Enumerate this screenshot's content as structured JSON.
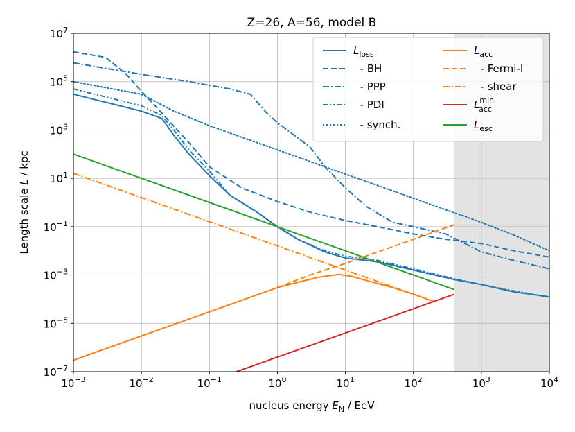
{
  "chart_data": {
    "type": "line",
    "title": "Z=26, A=56, model B",
    "xlabel": {
      "main": "nucleus energy ",
      "var": "E",
      "sub": "N",
      "unit": " / EeV"
    },
    "ylabel": {
      "main": "Length scale ",
      "var": "L",
      "unit": " / kpc"
    },
    "xscale": "log",
    "yscale": "log",
    "xlim_exp": [
      -3,
      4
    ],
    "ylim_exp": [
      -7,
      7
    ],
    "x_ticks": [
      {
        "exp": -3,
        "base": "10",
        "sup": "−3"
      },
      {
        "exp": -2,
        "base": "10",
        "sup": "−2"
      },
      {
        "exp": -1,
        "base": "10",
        "sup": "−1"
      },
      {
        "exp": 0,
        "base": "10",
        "sup": "0"
      },
      {
        "exp": 1,
        "base": "10",
        "sup": "1"
      },
      {
        "exp": 2,
        "base": "10",
        "sup": "2"
      },
      {
        "exp": 3,
        "base": "10",
        "sup": "3"
      },
      {
        "exp": 4,
        "base": "10",
        "sup": "4"
      }
    ],
    "y_ticks": [
      {
        "exp": -7,
        "base": "10",
        "sup": "−7"
      },
      {
        "exp": -5,
        "base": "10",
        "sup": "−5"
      },
      {
        "exp": -3,
        "base": "10",
        "sup": "−3"
      },
      {
        "exp": -1,
        "base": "10",
        "sup": "−1"
      },
      {
        "exp": 1,
        "base": "10",
        "sup": "1"
      },
      {
        "exp": 3,
        "base": "10",
        "sup": "3"
      },
      {
        "exp": 5,
        "base": "10",
        "sup": "5"
      },
      {
        "exp": 7,
        "base": "10",
        "sup": "7"
      }
    ],
    "grid": true,
    "shaded_region": {
      "x_from": 400,
      "x_to": 10000,
      "color": "#e3e3e3"
    },
    "legend_position": "top-right",
    "series": [
      {
        "name": "L_loss",
        "label": {
          "var": "L",
          "sub": "loss"
        },
        "color": "#1f77b4",
        "style": "solid",
        "points": [
          [
            0.001,
            30000.0
          ],
          [
            0.003,
            14000.0
          ],
          [
            0.01,
            6000.0
          ],
          [
            0.02,
            3000.0
          ],
          [
            0.03,
            600.0
          ],
          [
            0.05,
            100.0
          ],
          [
            0.1,
            13.0
          ],
          [
            0.2,
            2
          ],
          [
            0.5,
            0.4
          ],
          [
            1,
            0.1
          ],
          [
            2,
            0.03
          ],
          [
            5,
            0.009
          ],
          [
            10,
            0.005
          ],
          [
            30,
            0.0035
          ],
          [
            100,
            0.0016
          ],
          [
            400,
            0.00065
          ],
          [
            1000,
            0.0004
          ],
          [
            3000,
            0.0002
          ],
          [
            10000,
            0.000125
          ]
        ]
      },
      {
        "name": "- BH",
        "label": {
          "text": "  - BH"
        },
        "color": "#1f77b4",
        "style": "dashed",
        "points": [
          [
            0.001,
            1700000.0
          ],
          [
            0.003,
            1000000.0
          ],
          [
            0.006,
            200000.0
          ],
          [
            0.01,
            40000.0
          ],
          [
            0.02,
            5000.0
          ],
          [
            0.05,
            300.0
          ],
          [
            0.1,
            30.0
          ],
          [
            0.3,
            4
          ],
          [
            1,
            1.1
          ],
          [
            3,
            0.4
          ],
          [
            10,
            0.18
          ],
          [
            30,
            0.1
          ],
          [
            100,
            0.05
          ],
          [
            300,
            0.03
          ],
          [
            1000,
            0.02
          ],
          [
            3000,
            0.01
          ],
          [
            10000,
            0.0055
          ]
        ]
      },
      {
        "name": "- PPP",
        "label": {
          "text": "  - PPP"
        },
        "color": "#1f77b4",
        "style": "dashdot",
        "points": [
          [
            0.001,
            600000.0
          ],
          [
            0.01,
            200000.0
          ],
          [
            0.05,
            100000.0
          ],
          [
            0.2,
            50000.0
          ],
          [
            0.4,
            30000.0
          ],
          [
            0.7,
            5000.0
          ],
          [
            1,
            2000.0
          ],
          [
            3,
            200.0
          ],
          [
            5,
            30.0
          ],
          [
            10,
            4
          ],
          [
            20,
            0.7
          ],
          [
            50,
            0.15
          ],
          [
            100,
            0.1
          ],
          [
            300,
            0.05
          ],
          [
            1000,
            0.009
          ],
          [
            3000,
            0.004
          ],
          [
            10000,
            0.0018
          ]
        ]
      },
      {
        "name": "- PDI",
        "label": {
          "text": "  - PDI"
        },
        "color": "#1f77b4",
        "style": "dashdotdot",
        "points": [
          [
            0.001,
            50000.0
          ],
          [
            0.01,
            10000.0
          ],
          [
            0.02,
            4000.0
          ],
          [
            0.03,
            1000.0
          ],
          [
            0.05,
            150.0
          ],
          [
            0.1,
            20.0
          ],
          [
            0.2,
            2
          ],
          [
            0.5,
            0.4
          ],
          [
            1,
            0.1
          ],
          [
            2,
            0.03
          ],
          [
            5,
            0.01
          ],
          [
            10,
            0.006
          ],
          [
            30,
            0.004
          ],
          [
            100,
            0.0018
          ],
          [
            400,
            0.0007
          ],
          [
            1000,
            0.0004
          ],
          [
            3000,
            0.00022
          ],
          [
            10000,
            0.00012
          ]
        ]
      },
      {
        "name": "- synch.",
        "label": {
          "text": "  - synch."
        },
        "color": "#1f77b4",
        "style": "dotted",
        "points": [
          [
            0.001,
            100000.0
          ],
          [
            0.01,
            30000.0
          ],
          [
            0.03,
            6000.0
          ],
          [
            0.1,
            1500.0
          ],
          [
            0.3,
            500.0
          ],
          [
            1,
            150.0
          ],
          [
            3,
            50.0
          ],
          [
            10,
            15.0
          ],
          [
            30,
            5
          ],
          [
            100,
            1.5
          ],
          [
            300,
            0.5
          ],
          [
            1000,
            0.15
          ],
          [
            3000,
            0.045
          ],
          [
            10000,
            0.01
          ]
        ]
      },
      {
        "name": "L_acc",
        "label": {
          "var": "L",
          "sub": "acc"
        },
        "color": "#ff7f0e",
        "style": "solid",
        "points": [
          [
            0.001,
            3e-07
          ],
          [
            0.01,
            3e-06
          ],
          [
            0.1,
            3e-05
          ],
          [
            1,
            0.0003
          ],
          [
            2,
            0.0005
          ],
          [
            4,
            0.0008
          ],
          [
            8,
            0.00105
          ],
          [
            12,
            0.0009
          ],
          [
            20,
            0.0006
          ],
          [
            50,
            0.0003
          ],
          [
            100,
            0.00016
          ],
          [
            200,
            8e-05
          ]
        ]
      },
      {
        "name": "- Fermi-I",
        "label": {
          "text": "  - Fermi-I"
        },
        "color": "#ff7f0e",
        "style": "dashed",
        "points": [
          [
            1,
            0.0003
          ],
          [
            3,
            0.001
          ],
          [
            10,
            0.003
          ],
          [
            30,
            0.009
          ],
          [
            100,
            0.03
          ],
          [
            400,
            0.12
          ]
        ]
      },
      {
        "name": "- shear",
        "label": {
          "text": "  - shear"
        },
        "color": "#ff7f0e",
        "style": "dashdot",
        "points": [
          [
            0.001,
            16
          ],
          [
            0.01,
            1.6
          ],
          [
            0.1,
            0.16
          ],
          [
            1,
            0.016
          ],
          [
            10,
            0.0016
          ],
          [
            100,
            0.00016
          ],
          [
            200,
            8e-05
          ]
        ]
      },
      {
        "name": "L_acc_min",
        "label": {
          "var": "L",
          "sub": "acc",
          "sup": "min"
        },
        "color": "#d62728",
        "style": "solid",
        "points": [
          [
            0.25,
            1e-07
          ],
          [
            1,
            4e-07
          ],
          [
            10,
            4e-06
          ],
          [
            100,
            4e-05
          ],
          [
            400,
            0.00016
          ]
        ]
      },
      {
        "name": "L_esc",
        "label": {
          "var": "L",
          "sub": "esc"
        },
        "color": "#2ca02c",
        "style": "solid",
        "points": [
          [
            0.001,
            100
          ],
          [
            0.01,
            10
          ],
          [
            0.1,
            1
          ],
          [
            1,
            0.1
          ],
          [
            10,
            0.01
          ],
          [
            100,
            0.001
          ],
          [
            400,
            0.00025
          ]
        ]
      }
    ]
  }
}
